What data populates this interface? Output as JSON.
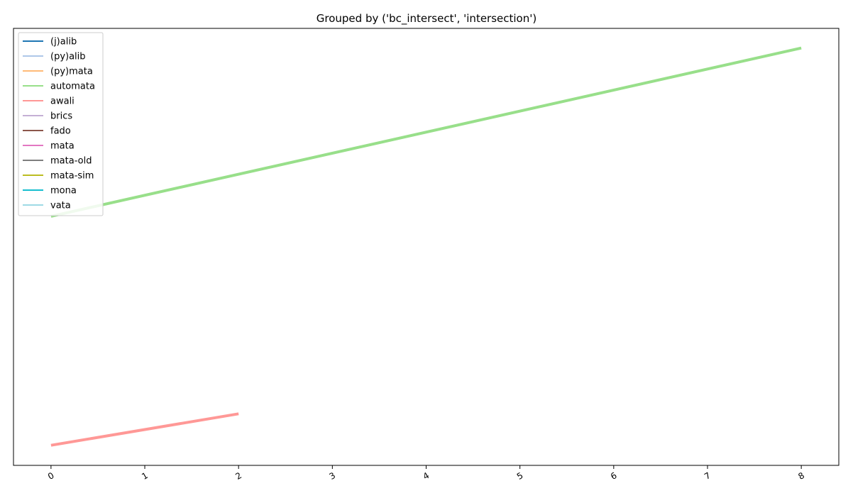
{
  "chart_data": {
    "type": "line",
    "title": "Grouped by ('bc_intersect', 'intersection')",
    "xlabel": "",
    "ylabel": "",
    "xlim": [
      -0.4,
      8.4
    ],
    "ylim": [
      0,
      1
    ],
    "x_ticks": [
      0,
      1,
      2,
      3,
      4,
      5,
      6,
      7,
      8
    ],
    "y_ticks": [],
    "grid": false,
    "legend_position": "upper-left",
    "series": [
      {
        "name": "(j)alib",
        "color": "#1f77b4",
        "x": [],
        "y": []
      },
      {
        "name": "(py)alib",
        "color": "#aec7e8",
        "x": [],
        "y": []
      },
      {
        "name": "(py)mata",
        "color": "#ffbb78",
        "x": [],
        "y": []
      },
      {
        "name": "automata",
        "color": "#98df8a",
        "x": [
          0,
          8
        ],
        "y": [
          0.57,
          0.955
        ]
      },
      {
        "name": "awali",
        "color": "#ff9896",
        "x": [
          0,
          2
        ],
        "y": [
          0.046,
          0.118
        ]
      },
      {
        "name": "brics",
        "color": "#c5b0d5",
        "x": [],
        "y": []
      },
      {
        "name": "fado",
        "color": "#8c564b",
        "x": [],
        "y": []
      },
      {
        "name": "mata",
        "color": "#e377c2",
        "x": [],
        "y": []
      },
      {
        "name": "mata-old",
        "color": "#7f7f7f",
        "x": [],
        "y": []
      },
      {
        "name": "mata-sim",
        "color": "#bcbd22",
        "x": [],
        "y": []
      },
      {
        "name": "mona",
        "color": "#17becf",
        "x": [],
        "y": []
      },
      {
        "name": "vata",
        "color": "#9edae5",
        "x": [],
        "y": []
      }
    ]
  }
}
